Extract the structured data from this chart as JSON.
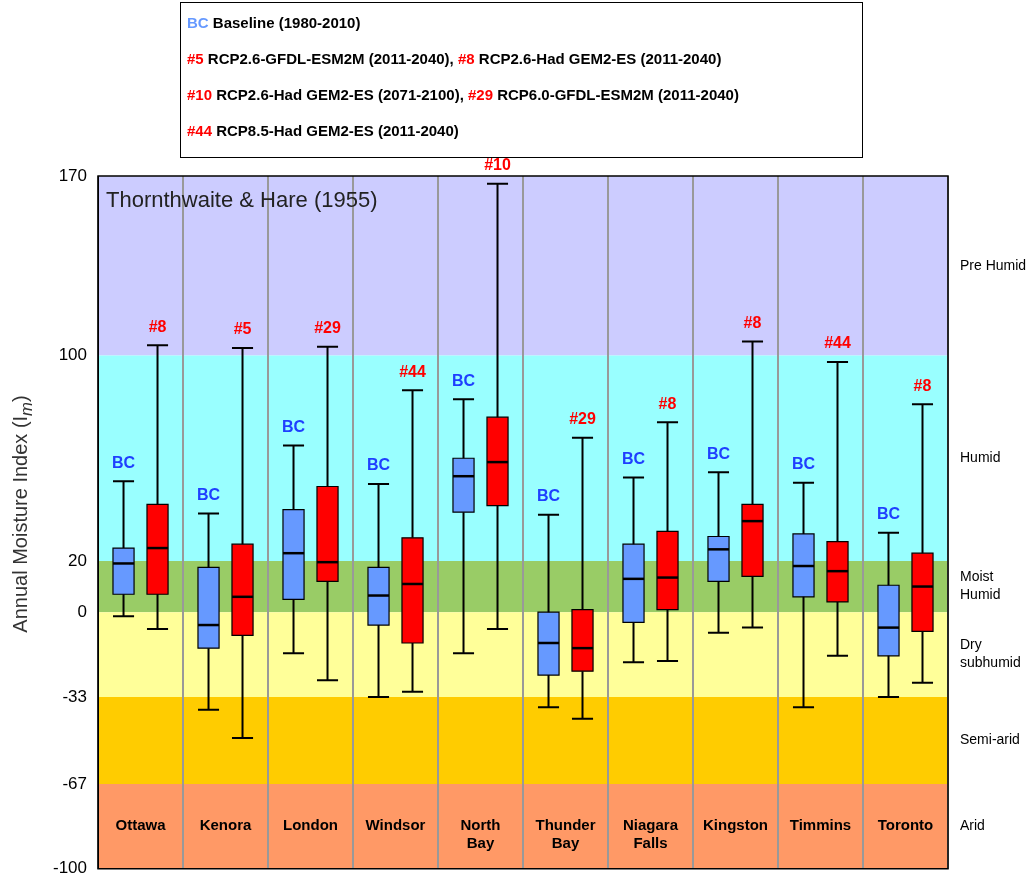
{
  "chart_data": {
    "type": "box",
    "title": "Thornthwaite & Hare (1955)",
    "ylabel": "Annual Moisture Index (I$_{m}$)",
    "categories": [
      "Ottawa",
      "Kenora",
      "London",
      "Windsor",
      "North Bay",
      "Thunder Bay",
      "Niagara Falls",
      "Kingston",
      "Timmins",
      "Toronto"
    ],
    "series": [
      {
        "color": "#6699ff",
        "value_labels": [
          "BC",
          "BC",
          "BC",
          "BC",
          "BC",
          "BC",
          "BC",
          "BC",
          "BC",
          "BC"
        ],
        "boxes": [
          {
            "low": -1.6,
            "q1": 7,
            "median": 19,
            "q3": 25,
            "high": 51
          },
          {
            "low": -38,
            "q1": -14,
            "median": -5,
            "q3": 17.5,
            "high": 38.5
          },
          {
            "low": -16,
            "q1": 5,
            "median": 23,
            "q3": 40,
            "high": 65
          },
          {
            "low": -33,
            "q1": -5,
            "median": 6.5,
            "q3": 17.5,
            "high": 50
          },
          {
            "low": -16,
            "q1": 39,
            "median": 53,
            "q3": 60,
            "high": 83
          },
          {
            "low": -37,
            "q1": -24.5,
            "median": -12,
            "q3": 0,
            "high": 38
          },
          {
            "low": -19.5,
            "q1": -4,
            "median": 13,
            "q3": 26.5,
            "high": 52.5
          },
          {
            "low": -8,
            "q1": 12,
            "median": 24.5,
            "q3": 29.5,
            "high": 54.5
          },
          {
            "low": -37,
            "q1": 6,
            "median": 18,
            "q3": 30.5,
            "high": 50.5
          },
          {
            "low": -33,
            "q1": -17,
            "median": -6,
            "q3": 10.5,
            "high": 31
          }
        ]
      },
      {
        "color": "#ff0000",
        "value_labels": [
          "#8",
          "#5",
          "#29",
          "#44",
          "#10",
          "#29",
          "#8",
          "#8",
          "#44",
          "#8"
        ],
        "boxes": [
          {
            "low": -6.5,
            "q1": 7,
            "median": 25,
            "q3": 42,
            "high": 104
          },
          {
            "low": -49,
            "q1": -9,
            "median": 6,
            "q3": 26.5,
            "high": 103
          },
          {
            "low": -26.5,
            "q1": 12,
            "median": 19.5,
            "q3": 49,
            "high": 103.5
          },
          {
            "low": -31,
            "q1": -12,
            "median": 11,
            "q3": 29,
            "high": 86.5
          },
          {
            "low": -6.5,
            "q1": 41.5,
            "median": 58.5,
            "q3": 76,
            "high": 167
          },
          {
            "low": -41.5,
            "q1": -23,
            "median": -14,
            "q3": 1,
            "high": 68
          },
          {
            "low": -19,
            "q1": 1,
            "median": 13.5,
            "q3": 31.5,
            "high": 74
          },
          {
            "low": -6,
            "q1": 14,
            "median": 35.5,
            "q3": 42,
            "high": 105.5
          },
          {
            "low": -17,
            "q1": 4,
            "median": 16,
            "q3": 27.5,
            "high": 97.5
          },
          {
            "low": -27.5,
            "q1": -7.5,
            "median": 10,
            "q3": 23,
            "high": 81
          }
        ]
      }
    ],
    "ylim": [
      -100,
      170
    ],
    "yticks": [
      170,
      100,
      20,
      0,
      -33,
      -67,
      -100
    ],
    "grid": "x",
    "legend": false,
    "bands": [
      {
        "axis": "y",
        "from": 100,
        "to": 170,
        "label": "Pre Humid",
        "color": "#ccccff"
      },
      {
        "axis": "y",
        "from": 20,
        "to": 100,
        "label": "Humid",
        "color": "#99ffff"
      },
      {
        "axis": "y",
        "from": 0,
        "to": 20,
        "label": "Moist Humid",
        "color": "#99cc66"
      },
      {
        "axis": "y",
        "from": -33,
        "to": 0,
        "label": "Dry subhumid",
        "color": "#ffff99"
      },
      {
        "axis": "y",
        "from": -67,
        "to": -33,
        "label": "Semi-arid",
        "color": "#ffcc00"
      },
      {
        "axis": "y",
        "from": -100,
        "to": -67,
        "label": "Arid",
        "color": "#ff9966"
      }
    ],
    "annotations": [
      "BC Baseline (1980-2010)",
      "#5 RCP2.6-GFDL-ESM2M (2011-2040),",
      "#8 RCP2.6-Had GEM2-ES (2011-2040)",
      "#10 RCP2.6-Had GEM2-ES (2071-2100),",
      "#29 RCP6.0-GFDL-ESM2M (2011-2040)",
      "#44 RCP8.5-Had GEM2-ES (2011-2040)"
    ]
  }
}
